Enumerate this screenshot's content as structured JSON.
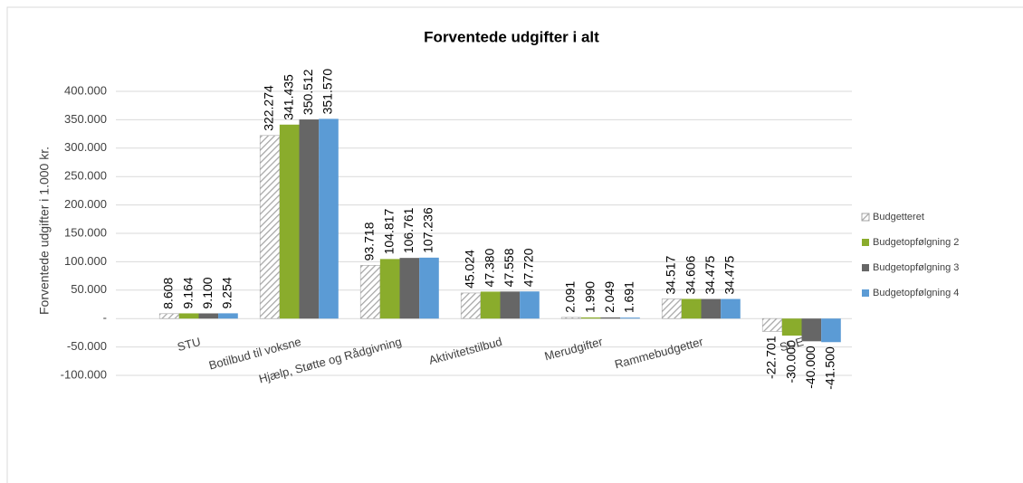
{
  "chart_data": {
    "type": "bar",
    "title": "Forventede udgifter i alt",
    "y_label": "Forventede udgifter i 1.000 kr.",
    "categories": [
      "STU",
      "Botilbud til voksne",
      "Hjælp, Støtte og Rådgivning",
      "Aktivitetstilbud",
      "Merudgifter",
      "Rammebudgetter",
      "SDE"
    ],
    "series": [
      {
        "name": "Budgetteret",
        "color": "#a6a6a6",
        "pattern": "hatch",
        "values": [
          8608,
          322274,
          93718,
          45024,
          2091,
          34517,
          -22701
        ],
        "value_labels": [
          "8.608",
          "322.274",
          "93.718",
          "45.024",
          "2.091",
          "34.517",
          "-22.701"
        ]
      },
      {
        "name": "Budgetopfølgning 2",
        "color": "#8aac2c",
        "values": [
          9164,
          341435,
          104817,
          47380,
          1990,
          34606,
          -30000
        ],
        "value_labels": [
          "9.164",
          "341.435",
          "104.817",
          "47.380",
          "1.990",
          "34.606",
          "-30.000"
        ]
      },
      {
        "name": "Budgetopfølgning 3",
        "color": "#666666",
        "values": [
          9100,
          350512,
          106761,
          47558,
          2049,
          34475,
          -40000
        ],
        "value_labels": [
          "9.100",
          "350.512",
          "106.761",
          "47.558",
          "2.049",
          "34.475",
          "-40.000"
        ]
      },
      {
        "name": "Budgetopfølgning 4",
        "color": "#5b9bd5",
        "values": [
          9254,
          351570,
          107236,
          47720,
          1691,
          34475,
          -41500
        ],
        "value_labels": [
          "9.254",
          "351.570",
          "107.236",
          "47.720",
          "1.691",
          "34.475",
          "-41.500"
        ]
      }
    ],
    "ylim": [
      -100000,
      400000
    ],
    "yticks": [
      {
        "value": -100000,
        "label": "-100.000"
      },
      {
        "value": -50000,
        "label": "-50.000"
      },
      {
        "value": 0,
        "label": "-"
      },
      {
        "value": 50000,
        "label": "50.000"
      },
      {
        "value": 100000,
        "label": "100.000"
      },
      {
        "value": 150000,
        "label": "150.000"
      },
      {
        "value": 200000,
        "label": "200.000"
      },
      {
        "value": 250000,
        "label": "250.000"
      },
      {
        "value": 300000,
        "label": "300.000"
      },
      {
        "value": 350000,
        "label": "350.000"
      },
      {
        "value": 400000,
        "label": "400.000"
      }
    ],
    "grid": true,
    "legend": "right"
  }
}
